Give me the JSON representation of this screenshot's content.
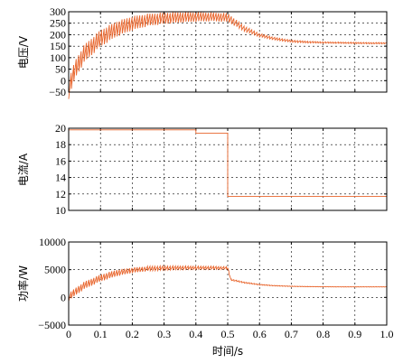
{
  "chart_data": [
    {
      "type": "line",
      "ylabel": "电压/V",
      "xlim": [
        0,
        1.0
      ],
      "ylim": [
        -50,
        300
      ],
      "yticks": [
        -50,
        0,
        50,
        100,
        150,
        200,
        250,
        300
      ],
      "ytick_labels": [
        "−50",
        "0",
        "50",
        "100",
        "150",
        "200",
        "250",
        "300"
      ],
      "grid": true,
      "color": "#e8642b",
      "series": [
        {
          "x": [
            0,
            0.02,
            0.05,
            0.1,
            0.15,
            0.2,
            0.25,
            0.3,
            0.35,
            0.4,
            0.45,
            0.5,
            0.55,
            0.6,
            0.65,
            0.7,
            0.75,
            0.8,
            0.85,
            0.9,
            0.95,
            1.0
          ],
          "values": [
            -40,
            50,
            120,
            185,
            225,
            250,
            265,
            272,
            276,
            278,
            278,
            275,
            228,
            198,
            182,
            172,
            168,
            166,
            165,
            164,
            163,
            163
          ],
          "ripple": [
            40,
            40,
            40,
            38,
            35,
            32,
            28,
            26,
            24,
            22,
            20,
            20,
            12,
            8,
            6,
            5,
            4,
            3,
            3,
            3,
            3,
            3
          ]
        }
      ]
    },
    {
      "type": "line",
      "ylabel": "电流/A",
      "xlim": [
        0,
        1.0
      ],
      "ylim": [
        10,
        20
      ],
      "yticks": [
        10,
        12,
        14,
        16,
        18,
        20
      ],
      "ytick_labels": [
        "10",
        "12",
        "14",
        "16",
        "18",
        "20"
      ],
      "grid": true,
      "color": "#e8642b",
      "series": [
        {
          "x": [
            0,
            0.4,
            0.4,
            0.5,
            0.5,
            1.0
          ],
          "values": [
            19.8,
            19.8,
            19.4,
            19.4,
            11.7,
            11.7
          ]
        }
      ]
    },
    {
      "type": "line",
      "ylabel": "功率/W",
      "xlabel": "时间/s",
      "xlim": [
        0,
        1.0
      ],
      "ylim": [
        -5000,
        10000
      ],
      "xticks": [
        0,
        0.1,
        0.2,
        0.3,
        0.4,
        0.5,
        0.6,
        0.7,
        0.8,
        0.9,
        1.0
      ],
      "xtick_labels": [
        "0",
        "0.1",
        "0.2",
        "0.3",
        "0.4",
        "0.5",
        "0.6",
        "0.7",
        "0.8",
        "0.9",
        "1.0"
      ],
      "yticks": [
        -5000,
        0,
        5000,
        10000
      ],
      "ytick_labels": [
        "−5000",
        "0",
        "5000",
        "10000"
      ],
      "grid": true,
      "color": "#e8642b",
      "series": [
        {
          "x": [
            0,
            0.02,
            0.05,
            0.1,
            0.15,
            0.2,
            0.25,
            0.3,
            0.35,
            0.4,
            0.45,
            0.5,
            0.51,
            0.55,
            0.6,
            0.65,
            0.7,
            0.75,
            0.8,
            0.85,
            0.9,
            0.95,
            1.0
          ],
          "values": [
            0,
            1000,
            2200,
            3500,
            4400,
            4900,
            5200,
            5300,
            5350,
            5350,
            5350,
            5300,
            3200,
            2700,
            2300,
            2100,
            2000,
            1950,
            1920,
            1900,
            1900,
            1900,
            1900
          ],
          "ripple": [
            700,
            700,
            700,
            650,
            600,
            500,
            450,
            400,
            350,
            300,
            300,
            250,
            150,
            120,
            80,
            60,
            50,
            40,
            30,
            30,
            30,
            30,
            30
          ]
        }
      ]
    }
  ]
}
